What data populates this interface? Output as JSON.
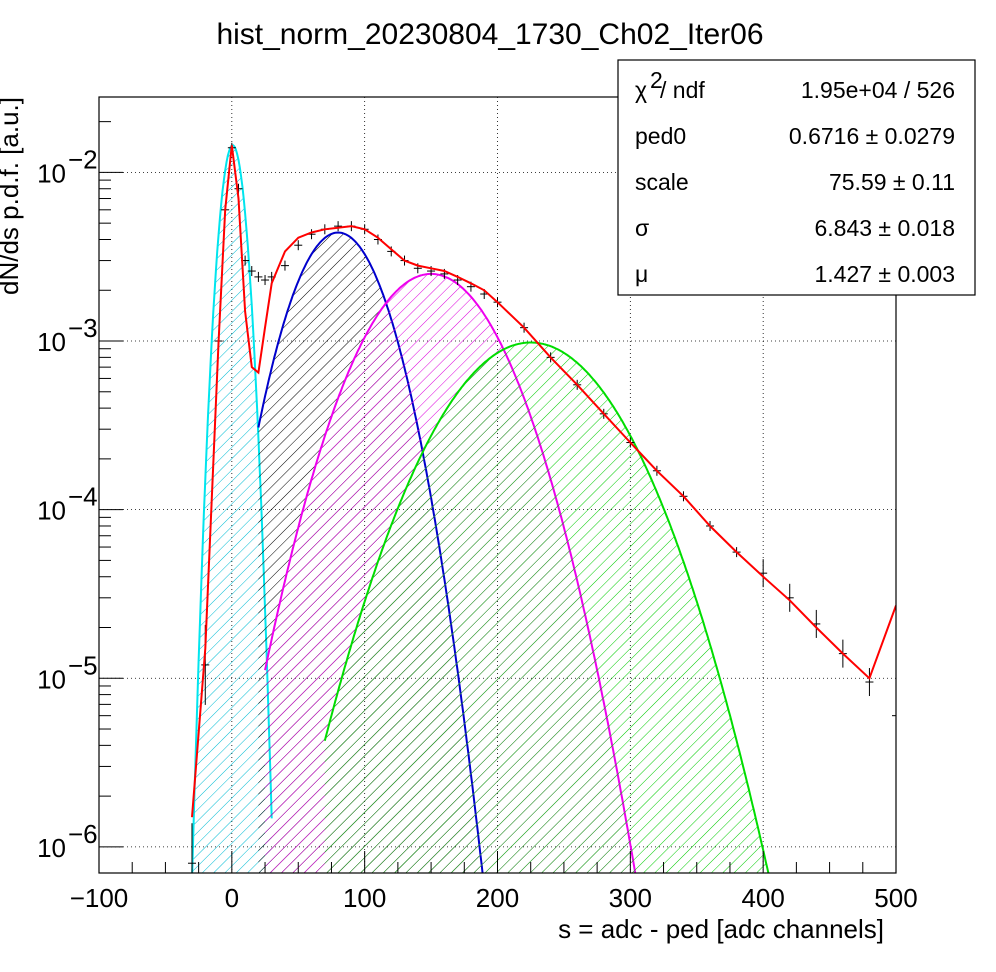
{
  "chart_data": {
    "type": "line",
    "title": "hist_norm_20230804_1730_Ch02_Iter06",
    "xlabel": "s = adc - ped [adc channels]",
    "ylabel": "dN/ds p.d.f. [a.u.]",
    "xlim": [
      -100,
      500
    ],
    "ylim": [
      7e-07,
      0.028
    ],
    "yscale": "log",
    "grid": true,
    "x_ticks": [
      "−100",
      "0",
      "100",
      "200",
      "300",
      "400",
      "500"
    ],
    "x_tick_values": [
      -100,
      0,
      100,
      200,
      300,
      400,
      500
    ],
    "y_ticks": [
      {
        "base": "10",
        "exp": "−6",
        "value": 1e-06
      },
      {
        "base": "10",
        "exp": "−5",
        "value": 1e-05
      },
      {
        "base": "10",
        "exp": "−4",
        "value": 0.0001
      },
      {
        "base": "10",
        "exp": "−3",
        "value": 0.001
      },
      {
        "base": "10",
        "exp": "−2",
        "value": 0.01
      }
    ],
    "stats_box": {
      "position": "top-right",
      "rows": [
        {
          "label": "χ",
          "label_sup": "2",
          "label_rest": " / ndf",
          "value": "1.95e+04 / 526"
        },
        {
          "label": "ped0",
          "value": "0.6716 ± 0.0279"
        },
        {
          "label": "scale",
          "value": "75.59 ± 0.11"
        },
        {
          "label": "σ",
          "value": "6.843 ± 0.018"
        },
        {
          "label": "μ",
          "value": "1.427 ± 0.003"
        }
      ]
    },
    "series": [
      {
        "name": "",
        "kind": "histogram",
        "color": "#000000",
        "x": [
          -30,
          -20,
          -10,
          -5,
          0,
          5,
          10,
          15,
          20,
          25,
          30,
          40,
          50,
          60,
          70,
          80,
          90,
          100,
          110,
          120,
          130,
          140,
          150,
          160,
          170,
          180,
          190,
          200,
          220,
          240,
          260,
          280,
          300,
          320,
          340,
          360,
          380,
          400,
          420,
          440,
          460,
          480,
          500
        ],
        "y": [
          8e-07,
          1.2e-05,
          0.001,
          0.006,
          0.014,
          0.008,
          0.003,
          0.0026,
          0.0024,
          0.0023,
          0.0024,
          0.0028,
          0.0037,
          0.0043,
          0.0046,
          0.0048,
          0.0048,
          0.0046,
          0.004,
          0.0034,
          0.003,
          0.0027,
          0.0026,
          0.0025,
          0.0023,
          0.0021,
          0.0019,
          0.0017,
          0.0012,
          0.0008,
          0.00055,
          0.00037,
          0.00025,
          0.00017,
          0.00012,
          8e-05,
          5.6e-05,
          4.2e-05,
          3e-05,
          2.1e-05,
          1.4e-05,
          9.5e-06,
          6e-06
        ]
      },
      {
        "name": "",
        "kind": "fit",
        "color": "#ff0000",
        "x": [
          -30,
          -20,
          -10,
          -5,
          0,
          5,
          10,
          15,
          20,
          25,
          30,
          40,
          50,
          60,
          70,
          80,
          90,
          100,
          110,
          120,
          130,
          140,
          150,
          160,
          170,
          180,
          190,
          200,
          220,
          240,
          260,
          280,
          300,
          320,
          340,
          360,
          380,
          400,
          420,
          440,
          460,
          480,
          500
        ],
        "y": [
          1.5e-06,
          1.5e-05,
          0.001,
          0.006,
          0.0145,
          0.007,
          0.0015,
          0.0007,
          0.00065,
          0.0012,
          0.0022,
          0.0034,
          0.0041,
          0.0044,
          0.0046,
          0.0047,
          0.0048,
          0.0046,
          0.0041,
          0.0035,
          0.003,
          0.0028,
          0.0027,
          0.0026,
          0.0024,
          0.0022,
          0.002,
          0.0017,
          0.0012,
          0.0008,
          0.00055,
          0.00037,
          0.00025,
          0.00017,
          0.00012,
          8e-05,
          5.6e-05,
          4e-05,
          2.9e-05,
          2e-05,
          1.4e-05,
          1e-05,
          2.7e-05
        ]
      },
      {
        "name": "",
        "kind": "component",
        "color": "#00e5ee",
        "hatch": "cyan",
        "mean": 0.67,
        "sigma": 6.84,
        "peak": 0.0145,
        "x_range": [
          -30,
          30
        ]
      },
      {
        "name": "",
        "kind": "component",
        "color": "#0000cc",
        "hatch": "black",
        "mean": 80,
        "sigma": 26,
        "peak": 0.0044,
        "x_range": [
          20,
          195
        ]
      },
      {
        "name": "",
        "kind": "component",
        "color": "#ee00ee",
        "hatch": "magenta",
        "mean": 150,
        "sigma": 38,
        "peak": 0.0025,
        "x_range": [
          25,
          320
        ]
      },
      {
        "name": "",
        "kind": "component",
        "color": "#00dd00",
        "hatch": "green",
        "mean": 225,
        "sigma": 47,
        "peak": 0.00098,
        "x_range": [
          70,
          410
        ]
      }
    ]
  }
}
